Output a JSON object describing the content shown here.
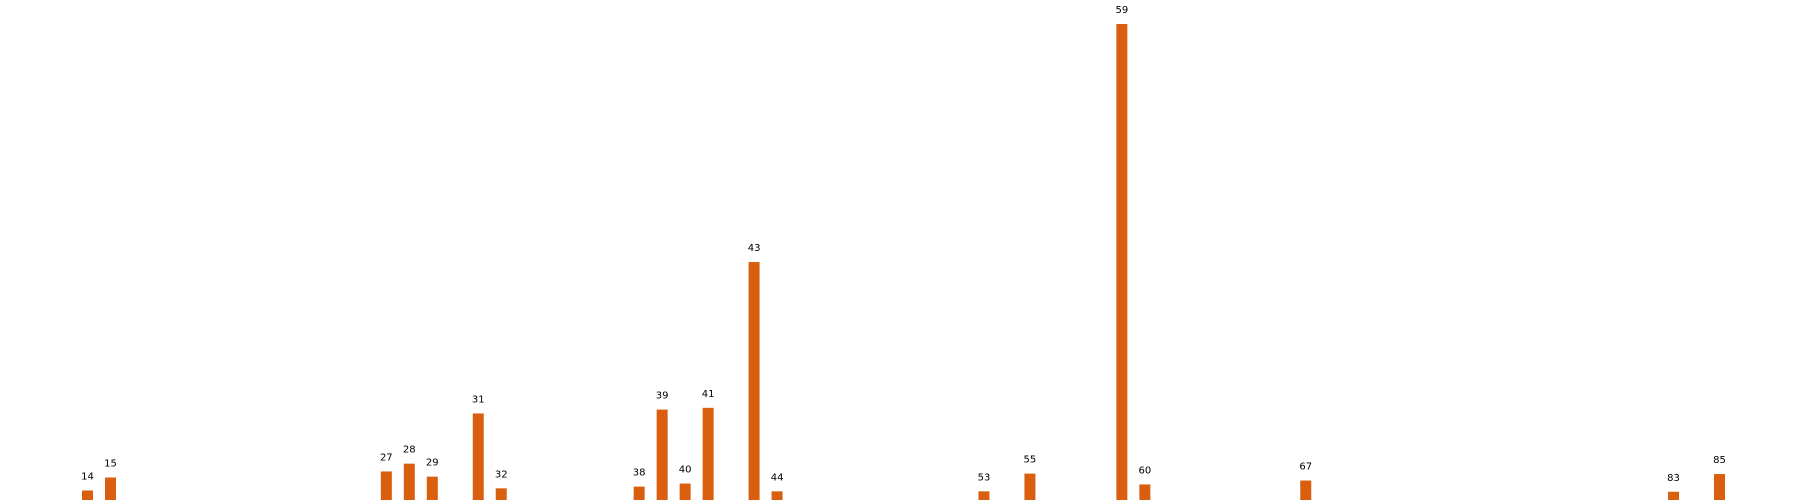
{
  "chart_data": {
    "type": "bar",
    "title": "",
    "xlabel": "",
    "ylabel": "",
    "grid": false,
    "bar_color": "#d95f0e",
    "categories": [
      "14",
      "15",
      "27",
      "28",
      "29",
      "31",
      "32",
      "38",
      "39",
      "40",
      "41",
      "43",
      "44",
      "53",
      "55",
      "59",
      "60",
      "67",
      "83",
      "85"
    ],
    "values": [
      2.2,
      5.2,
      6.6,
      8.4,
      5.4,
      20.0,
      2.7,
      3.1,
      20.9,
      3.8,
      21.3,
      55.0,
      2.0,
      2.0,
      6.1,
      110.0,
      3.6,
      4.5,
      1.9,
      6.0
    ],
    "ylim": [
      0,
      110
    ]
  }
}
